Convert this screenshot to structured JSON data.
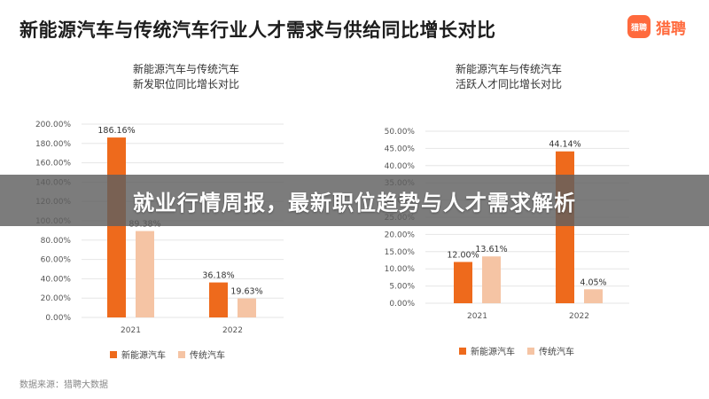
{
  "header": {
    "title": "新能源汽车与传统汽车行业人才需求与供给同比增长对比",
    "logo_badge": "猎聘",
    "logo_text": "猎聘"
  },
  "banner": {
    "text": "就业行情周报，最新职位趋势与人才需求解析"
  },
  "footer": {
    "source": "数据来源：猎聘大数据"
  },
  "colors": {
    "new_energy": "#ee6a1c",
    "traditional": "#f5c4a4",
    "grid": "#e6e6e6"
  },
  "chart_data": [
    {
      "type": "bar",
      "title_lines": [
        "新能源汽车与传统汽车",
        "新发职位同比增长对比"
      ],
      "categories": [
        "2021",
        "2022"
      ],
      "series": [
        {
          "name": "新能源汽车",
          "values": [
            186.16,
            36.18
          ],
          "labels": [
            "186.16%",
            "36.18%"
          ]
        },
        {
          "name": "传统汽车",
          "values": [
            89.38,
            19.63
          ],
          "labels": [
            "89.38%",
            "19.63%"
          ]
        }
      ],
      "ylim": [
        0,
        200
      ],
      "yticks": [
        "0.00%",
        "20.00%",
        "40.00%",
        "60.00%",
        "80.00%",
        "100.00%",
        "120.00%",
        "140.00%",
        "160.00%",
        "180.00%",
        "200.00%"
      ],
      "grid": true,
      "legend": "bottom"
    },
    {
      "type": "bar",
      "title_lines": [
        "新能源汽车与传统汽车",
        "活跃人才同比增长对比"
      ],
      "categories": [
        "2021",
        "2022"
      ],
      "series": [
        {
          "name": "新能源汽车",
          "values": [
            12.0,
            44.14
          ],
          "labels": [
            "12.00%",
            "44.14%"
          ]
        },
        {
          "name": "传统汽车",
          "values": [
            13.61,
            4.05
          ],
          "labels": [
            "13.61%",
            "4.05%"
          ]
        }
      ],
      "ylim": [
        0,
        50
      ],
      "yticks": [
        "0.00%",
        "5.00%",
        "10.00%",
        "15.00%",
        "20.00%",
        "25.00%",
        "30.00%",
        "35.00%",
        "40.00%",
        "45.00%",
        "50.00%"
      ],
      "grid": true,
      "legend": "bottom"
    }
  ]
}
